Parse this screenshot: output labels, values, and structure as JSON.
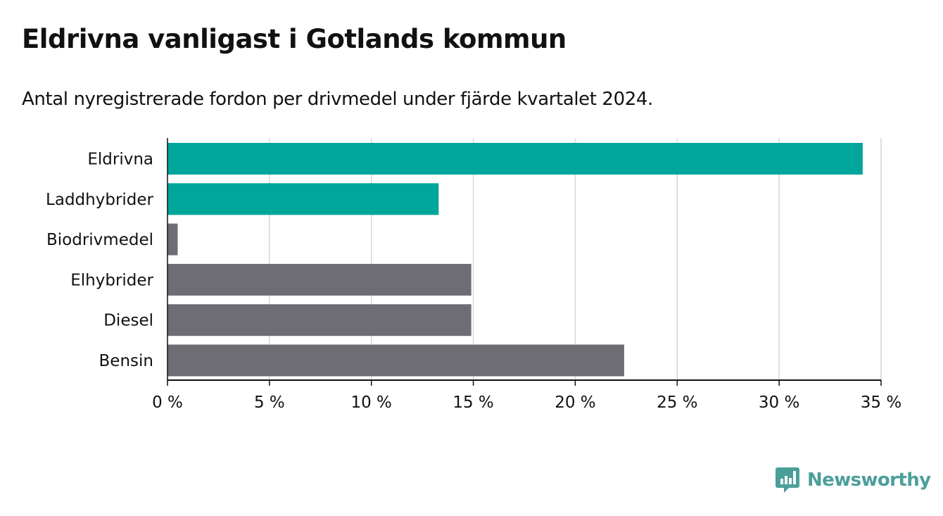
{
  "title": "Eldrivna vanligast i Gotlands kommun",
  "subtitle": "Antal nyregistrerade fordon per drivmedel under fjärde kvartalet 2024.",
  "brand": {
    "name": "Newsworthy",
    "icon": "newsworthy-logo-icon",
    "color": "#4b9f9a"
  },
  "chart_data": {
    "type": "bar",
    "orientation": "horizontal",
    "categories": [
      "Eldrivna",
      "Laddhybrider",
      "Biodrivmedel",
      "Elhybrider",
      "Diesel",
      "Bensin"
    ],
    "values": [
      34.1,
      13.3,
      0.5,
      14.9,
      14.9,
      22.4
    ],
    "highlighted": [
      true,
      true,
      false,
      false,
      false,
      false
    ],
    "colors": {
      "highlight": "#00a59b",
      "default": "#6e6d74",
      "grid": "#d6d6d6",
      "axis": "#111111"
    },
    "xlim": [
      0,
      35
    ],
    "xticks": [
      0,
      5,
      10,
      15,
      20,
      25,
      30,
      35
    ],
    "tick_labels": [
      "0 %",
      "5 %",
      "10 %",
      "15 %",
      "20 %",
      "25 %",
      "30 %",
      "35 %"
    ],
    "grid": true,
    "legend": false
  }
}
